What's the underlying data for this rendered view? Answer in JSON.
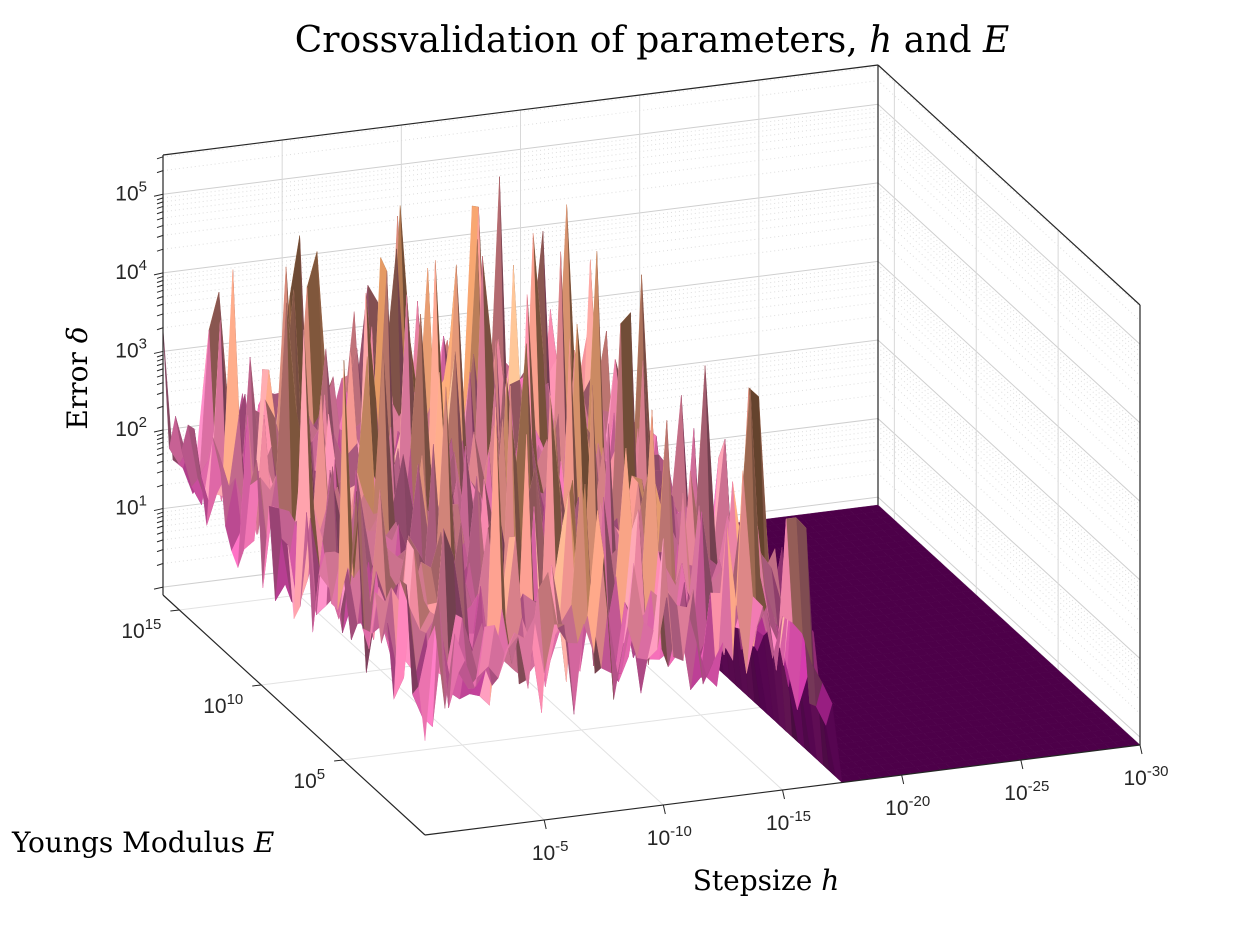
{
  "chart_data": {
    "type": "surface",
    "title": {
      "text": "Crossvalidation of parameters, ",
      "var1": "h",
      "middle": " and ",
      "var2": "E"
    },
    "xlabel": {
      "text": "Stepsize ",
      "var": "h"
    },
    "ylabel": {
      "text": "Youngs Modulus ",
      "var": "E"
    },
    "zlabel": {
      "text": "Error ",
      "var": "δ"
    },
    "x_axis": {
      "scale": "log",
      "direction": "decreasing",
      "ticks": [
        {
          "base": "10",
          "exp": "-5"
        },
        {
          "base": "10",
          "exp": "-10"
        },
        {
          "base": "10",
          "exp": "-15"
        },
        {
          "base": "10",
          "exp": "-20"
        },
        {
          "base": "10",
          "exp": "-25"
        },
        {
          "base": "10",
          "exp": "-30"
        }
      ]
    },
    "y_axis": {
      "scale": "log",
      "ticks": [
        {
          "base": "10",
          "exp": "5"
        },
        {
          "base": "10",
          "exp": "10"
        },
        {
          "base": "10",
          "exp": "15"
        }
      ]
    },
    "z_axis": {
      "scale": "log",
      "range": [
        1,
        316228
      ],
      "ticks": [
        {
          "base": "10",
          "exp": "1"
        },
        {
          "base": "10",
          "exp": "2"
        },
        {
          "base": "10",
          "exp": "3"
        },
        {
          "base": "10",
          "exp": "4"
        },
        {
          "base": "10",
          "exp": "5"
        }
      ]
    },
    "description_data": {
      "x_range_log10": [
        0,
        -30
      ],
      "y_range_log10": [
        0,
        16
      ],
      "noisy_region_x_log10": [
        0,
        -17
      ],
      "typical_error_range": [
        10,
        1000
      ],
      "peak_error": 100000,
      "flat_region_x_log10": [
        -17,
        -30
      ]
    },
    "grid": true,
    "colors": {
      "surface_low": "#4a0048",
      "surface_mid": "#c85a9c",
      "surface_high": "#e8a070",
      "surface_peak": "#8a7a20",
      "flat_region": "#4d0049",
      "axis": "#262626",
      "grid": "#dcdcdc"
    }
  }
}
